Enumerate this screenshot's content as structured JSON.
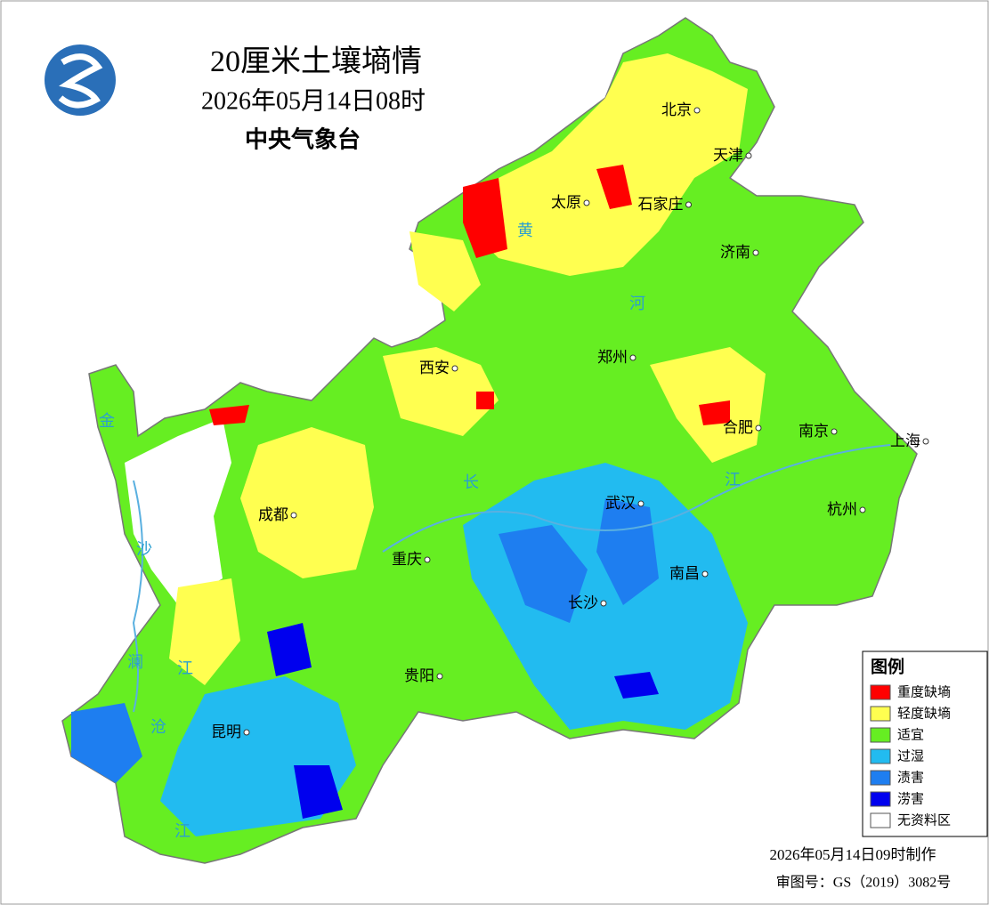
{
  "header": {
    "title": "20厘米土壤墒情",
    "date": "2026年05月14日08时",
    "agency": "中央气象台"
  },
  "cities": [
    "北京",
    "天津",
    "太原",
    "石家庄",
    "济南",
    "西安",
    "郑州",
    "合肥",
    "南京",
    "上海",
    "武汉",
    "杭州",
    "成都",
    "重庆",
    "南昌",
    "长沙",
    "贵阳",
    "昆明"
  ],
  "rivers": [
    "黄",
    "河",
    "长",
    "江",
    "金",
    "沙",
    "江",
    "澜",
    "沧",
    "江"
  ],
  "legend": {
    "title": "图例",
    "items": [
      {
        "label": "重度缺墒",
        "color": "#ff0000"
      },
      {
        "label": "轻度缺墒",
        "color": "#ffff50"
      },
      {
        "label": "适宜",
        "color": "#66ee22"
      },
      {
        "label": "过湿",
        "color": "#22bbf0"
      },
      {
        "label": "渍害",
        "color": "#1e7ef0"
      },
      {
        "label": "涝害",
        "color": "#0000ee"
      },
      {
        "label": "无资料区",
        "color": "#ffffff"
      }
    ]
  },
  "footer": {
    "made": "2026年05月14日09时制作",
    "approval": "审图号：GS（2019）3082号"
  }
}
